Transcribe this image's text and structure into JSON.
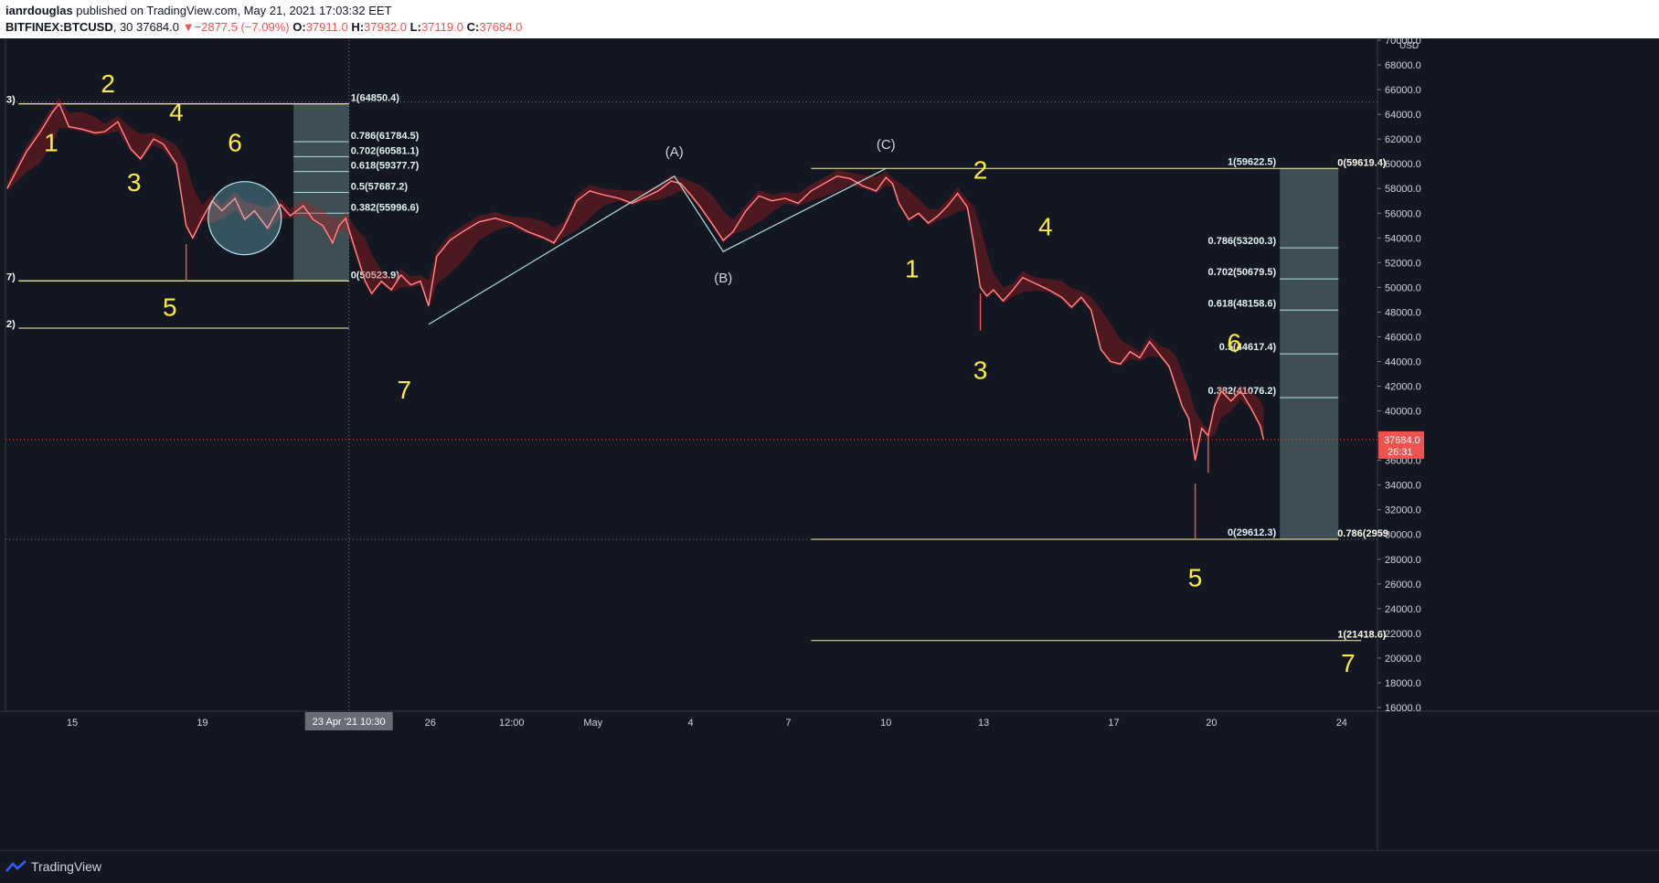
{
  "header": {
    "author": "ianrdouglas",
    "published": " published on TradingView.com, May 21, 2021 17:03:32 EET",
    "symbol": "BITFINEX:BTCUSD",
    "interval": ", 30 ",
    "last": "37684.0",
    "change": "−2877.5 (−7.09%)",
    "o_label": "O:",
    "o_val": "37911.0",
    "h_label": "H:",
    "h_val": "37932.0",
    "l_label": "L:",
    "l_val": "37119.0",
    "c_label": "C:",
    "c_val": "37684.0"
  },
  "footer": {
    "brand": "TradingView"
  },
  "colors": {
    "background": "#131722",
    "yellow": "#ffeb3b",
    "fib_line": "#b2dfdb",
    "fib_box": "#607d80",
    "red": "#ef5350",
    "grid": "#2a2e39"
  },
  "chart_data": {
    "type": "line",
    "title": "",
    "yaxis": {
      "currency": "USD",
      "range": [
        15000,
        71000
      ],
      "ticks": [
        "16000.0",
        "18000.0",
        "20000.0",
        "22000.0",
        "24000.0",
        "26000.0",
        "28000.0",
        "30000.0",
        "32000.0",
        "34000.0",
        "36000.0",
        "38000.0",
        "40000.0",
        "42000.0",
        "44000.0",
        "46000.0",
        "48000.0",
        "50000.0",
        "52000.0",
        "54000.0",
        "56000.0",
        "58000.0",
        "60000.0",
        "62000.0",
        "64000.0",
        "66000.0",
        "68000.0",
        "70000.0"
      ]
    },
    "xaxis": {
      "range": [
        12.95,
        55.1
      ],
      "ticks": [
        {
          "x": 15,
          "label": "15"
        },
        {
          "x": 19,
          "label": "19"
        },
        {
          "x": 23,
          "label": "2"
        },
        {
          "x": 26,
          "label": "26"
        },
        {
          "x": 28.5,
          "label": "12:00"
        },
        {
          "x": 31,
          "label": "May"
        },
        {
          "x": 34,
          "label": "4"
        },
        {
          "x": 37,
          "label": "7"
        },
        {
          "x": 40,
          "label": "10"
        },
        {
          "x": 43,
          "label": "13"
        },
        {
          "x": 47,
          "label": "17"
        },
        {
          "x": 50,
          "label": "20"
        },
        {
          "x": 54,
          "label": "24"
        }
      ],
      "crosshair": {
        "x": 23.5,
        "label": "23 Apr '21    10:30"
      }
    },
    "last_price": {
      "value": 37684.0,
      "label": "37684.0",
      "countdown": "26:31"
    },
    "price_series": [
      [
        13.0,
        58000
      ],
      [
        13.3,
        59500
      ],
      [
        13.6,
        61000
      ],
      [
        14.0,
        62500
      ],
      [
        14.4,
        64200
      ],
      [
        14.6,
        64850
      ],
      [
        14.9,
        63000
      ],
      [
        15.3,
        62800
      ],
      [
        15.7,
        62500
      ],
      [
        16.0,
        62600
      ],
      [
        16.4,
        63400
      ],
      [
        16.8,
        61200
      ],
      [
        17.1,
        60400
      ],
      [
        17.5,
        62000
      ],
      [
        17.8,
        61600
      ],
      [
        18.2,
        60000
      ],
      [
        18.5,
        55000
      ],
      [
        18.7,
        54000
      ],
      [
        19.0,
        55600
      ],
      [
        19.3,
        57000
      ],
      [
        19.6,
        56200
      ],
      [
        20.0,
        57200
      ],
      [
        20.3,
        55500
      ],
      [
        20.6,
        56200
      ],
      [
        21.0,
        54800
      ],
      [
        21.4,
        56700
      ],
      [
        21.7,
        55800
      ],
      [
        22.1,
        56600
      ],
      [
        22.4,
        55500
      ],
      [
        22.7,
        55000
      ],
      [
        23.0,
        53600
      ],
      [
        23.2,
        55000
      ],
      [
        23.4,
        55600
      ],
      [
        23.7,
        53000
      ],
      [
        24.0,
        50500
      ],
      [
        24.2,
        49500
      ],
      [
        24.5,
        50500
      ],
      [
        24.8,
        49800
      ],
      [
        25.1,
        51000
      ],
      [
        25.4,
        50200
      ],
      [
        25.7,
        50500
      ],
      [
        25.95,
        48500
      ],
      [
        26.2,
        52500
      ],
      [
        26.6,
        53800
      ],
      [
        27.0,
        54500
      ],
      [
        27.5,
        55300
      ],
      [
        28.0,
        55600
      ],
      [
        28.5,
        55200
      ],
      [
        29.0,
        54500
      ],
      [
        29.5,
        54000
      ],
      [
        29.8,
        53600
      ],
      [
        30.1,
        54800
      ],
      [
        30.5,
        57000
      ],
      [
        30.9,
        57800
      ],
      [
        31.3,
        57500
      ],
      [
        31.8,
        57200
      ],
      [
        32.2,
        56800
      ],
      [
        32.6,
        57300
      ],
      [
        33.0,
        57800
      ],
      [
        33.4,
        58600
      ],
      [
        33.7,
        58400
      ],
      [
        34.0,
        57500
      ],
      [
        34.3,
        56500
      ],
      [
        34.7,
        55000
      ],
      [
        35.0,
        53800
      ],
      [
        35.3,
        54500
      ],
      [
        35.7,
        56200
      ],
      [
        36.1,
        57400
      ],
      [
        36.5,
        57000
      ],
      [
        36.9,
        57200
      ],
      [
        37.3,
        56800
      ],
      [
        37.7,
        57800
      ],
      [
        38.1,
        58400
      ],
      [
        38.5,
        59000
      ],
      [
        38.9,
        58800
      ],
      [
        39.3,
        58200
      ],
      [
        39.7,
        57800
      ],
      [
        40.0,
        58900
      ],
      [
        40.2,
        58400
      ],
      [
        40.4,
        56800
      ],
      [
        40.7,
        55500
      ],
      [
        41.0,
        56000
      ],
      [
        41.3,
        55200
      ],
      [
        41.6,
        55800
      ],
      [
        41.9,
        56600
      ],
      [
        42.2,
        57600
      ],
      [
        42.5,
        56500
      ],
      [
        42.7,
        53500
      ],
      [
        42.9,
        50000
      ],
      [
        43.1,
        49300
      ],
      [
        43.3,
        49800
      ],
      [
        43.6,
        48900
      ],
      [
        43.9,
        49800
      ],
      [
        44.2,
        50800
      ],
      [
        44.6,
        50300
      ],
      [
        45.0,
        49800
      ],
      [
        45.4,
        49200
      ],
      [
        45.7,
        48400
      ],
      [
        46.0,
        49200
      ],
      [
        46.3,
        48200
      ],
      [
        46.6,
        45000
      ],
      [
        46.9,
        44000
      ],
      [
        47.2,
        43800
      ],
      [
        47.5,
        44800
      ],
      [
        47.8,
        44300
      ],
      [
        48.1,
        45600
      ],
      [
        48.4,
        44600
      ],
      [
        48.7,
        43600
      ],
      [
        48.9,
        42000
      ],
      [
        49.1,
        40400
      ],
      [
        49.3,
        39400
      ],
      [
        49.5,
        36000
      ],
      [
        49.7,
        38600
      ],
      [
        49.9,
        38000
      ],
      [
        50.1,
        40400
      ],
      [
        50.3,
        41600
      ],
      [
        50.6,
        40800
      ],
      [
        50.9,
        41600
      ],
      [
        51.2,
        40300
      ],
      [
        51.5,
        38800
      ],
      [
        51.6,
        37684
      ]
    ],
    "low_wicks": [
      [
        18.5,
        50500
      ],
      [
        49.5,
        29612
      ],
      [
        42.9,
        46500
      ],
      [
        49.9,
        35000
      ]
    ],
    "wave_path": [
      [
        25.95,
        47000
      ],
      [
        33.5,
        59000
      ],
      [
        35.0,
        52900
      ],
      [
        40.0,
        59619
      ]
    ],
    "fib_left": {
      "x1": 13.35,
      "x2": 23.5,
      "box_x1": 21.8,
      "levels": [
        {
          "value": 64850.4,
          "label": "1(64850.4)"
        },
        {
          "value": 61784.5,
          "label": "0.786(61784.5)"
        },
        {
          "value": 60581.1,
          "label": "0.702(60581.1)"
        },
        {
          "value": 59377.7,
          "label": "0.618(59377.7)"
        },
        {
          "value": 57687.2,
          "label": "0.5(57687.2)"
        },
        {
          "value": 55996.6,
          "label": "0.382(55996.6)"
        },
        {
          "value": 50523.9,
          "label": "0(50523.9)"
        }
      ],
      "extra_lines": [
        {
          "value": 64850.4,
          "label": "3)"
        },
        {
          "value": 50523.9,
          "label": "7)"
        },
        {
          "value": 46700,
          "label": "2)"
        }
      ]
    },
    "fib_right": {
      "x1": 37.7,
      "x2": 53.9,
      "box_x1": 52.1,
      "box_x2": 53.9,
      "levels": [
        {
          "value": 59622.5,
          "label": "1(59622.5)"
        },
        {
          "value": 53200.3,
          "label": "0.786(53200.3)"
        },
        {
          "value": 50679.5,
          "label": "0.702(50679.5)"
        },
        {
          "value": 48158.6,
          "label": "0.618(48158.6)"
        },
        {
          "value": 44617.4,
          "label": "0.5(44617.4)"
        },
        {
          "value": 41076.2,
          "label": "0.382(41076.2)"
        },
        {
          "value": 29612.3,
          "label": "0(29612.3)"
        }
      ],
      "outer_levels": [
        {
          "value": 59619.4,
          "label": "0(59619.4)"
        },
        {
          "value": 29600,
          "label": "0.786(2959"
        },
        {
          "value": 21418.6,
          "label": "1(21418.6)"
        }
      ]
    },
    "ext_line": {
      "x1": 37.7,
      "x2": 54.6,
      "value": 21418.6
    },
    "dotted_levels": [
      65000,
      29612.3
    ],
    "circle": {
      "x": 20.3,
      "y": 55600
    },
    "wave_labels": [
      {
        "text": "1",
        "x": 14.35,
        "y": 61000
      },
      {
        "text": "2",
        "x": 16.1,
        "y": 65800
      },
      {
        "text": "3",
        "x": 16.9,
        "y": 57800
      },
      {
        "text": "4",
        "x": 18.2,
        "y": 63500
      },
      {
        "text": "5",
        "x": 18.0,
        "y": 47700
      },
      {
        "text": "6",
        "x": 20.0,
        "y": 61000
      },
      {
        "text": "7",
        "x": 25.2,
        "y": 41000
      },
      {
        "text": "1",
        "x": 40.8,
        "y": 50800
      },
      {
        "text": "2",
        "x": 42.9,
        "y": 58800
      },
      {
        "text": "3",
        "x": 42.9,
        "y": 42600
      },
      {
        "text": "4",
        "x": 44.9,
        "y": 54200
      },
      {
        "text": "5",
        "x": 49.5,
        "y": 25800
      },
      {
        "text": "6",
        "x": 50.7,
        "y": 44800
      },
      {
        "text": "7",
        "x": 54.2,
        "y": 18900
      }
    ],
    "abc_labels": [
      {
        "text": "(A)",
        "x": 33.5,
        "y": 60600
      },
      {
        "text": "(B)",
        "x": 35.0,
        "y": 50400
      },
      {
        "text": "(C)",
        "x": 40.0,
        "y": 61200
      }
    ]
  }
}
